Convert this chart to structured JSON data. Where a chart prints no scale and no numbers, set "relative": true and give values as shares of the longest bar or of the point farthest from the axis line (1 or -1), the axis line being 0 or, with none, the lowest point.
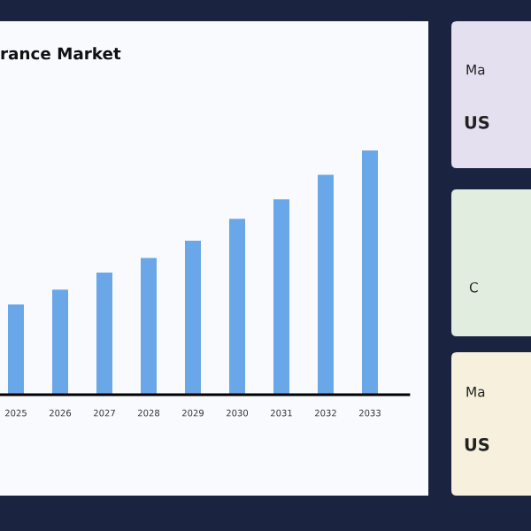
{
  "chart_data": {
    "type": "bar",
    "title": "rance Market",
    "categories": [
      "2025",
      "2026",
      "2027",
      "2028",
      "2029",
      "2030",
      "2031",
      "2032",
      "2033"
    ],
    "values": [
      0.37,
      0.43,
      0.5,
      0.56,
      0.63,
      0.72,
      0.8,
      0.9,
      1
    ],
    "color": "#6aa7e8",
    "relative": true,
    "grid": false,
    "legend": false,
    "annotations": [
      "Ma",
      "US",
      "C",
      "Ma",
      "US"
    ]
  }
}
